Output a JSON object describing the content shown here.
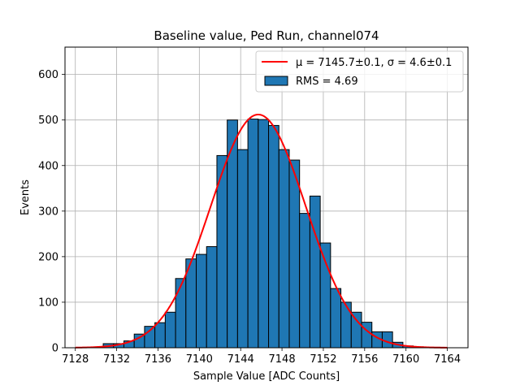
{
  "chart_data": {
    "type": "bar",
    "title": "Baseline value, Ped Run, channel074",
    "xlabel": "Sample Value [ADC Counts]",
    "ylabel": "Events",
    "xlim": [
      7127,
      7166
    ],
    "ylim": [
      0,
      660
    ],
    "xticks": [
      7128,
      7132,
      7136,
      7140,
      7144,
      7148,
      7152,
      7156,
      7160,
      7164
    ],
    "yticks": [
      0,
      100,
      200,
      300,
      400,
      500,
      600
    ],
    "grid": true,
    "legend_position": "top-right",
    "bin_width": 1,
    "bin_edges": [
      7128.7,
      7129.7,
      7130.7,
      7131.7,
      7132.7,
      7133.7,
      7134.7,
      7135.7,
      7136.7,
      7137.7,
      7138.7,
      7139.7,
      7140.7,
      7141.7,
      7142.7,
      7143.7,
      7144.7,
      7145.7,
      7146.7,
      7147.7,
      7148.7,
      7149.7,
      7150.7,
      7151.7,
      7152.7,
      7153.7,
      7154.7,
      7155.7,
      7156.7,
      7157.7,
      7158.7,
      7159.7,
      7160.7,
      7161.7,
      7162.7,
      7163.7,
      7164.7
    ],
    "counts": [
      1,
      1,
      9,
      9,
      15,
      30,
      47,
      55,
      78,
      152,
      195,
      205,
      222,
      422,
      500,
      435,
      502,
      501,
      488,
      435,
      412,
      295,
      333,
      230,
      130,
      100,
      78,
      56,
      35,
      35,
      12,
      4,
      2,
      1,
      1,
      0
    ],
    "series": [
      {
        "name": "RMS = 4.69",
        "kind": "histogram",
        "color": "#1f77b4"
      },
      {
        "name": "$\\mu=7145.7\\pm0.1$, $\\sigma=4.6\\pm0.1$",
        "kind": "gaussian-fit",
        "color": "#ff0000",
        "mu": 7145.7,
        "sigma": 4.6,
        "amplitude": 512
      }
    ]
  },
  "legend": {
    "fit_label_prefix": "μ = 7145.7±0.1, ",
    "fit_label_sigma": "σ = 4.6±0.1",
    "hist_label": "RMS = 4.69"
  }
}
